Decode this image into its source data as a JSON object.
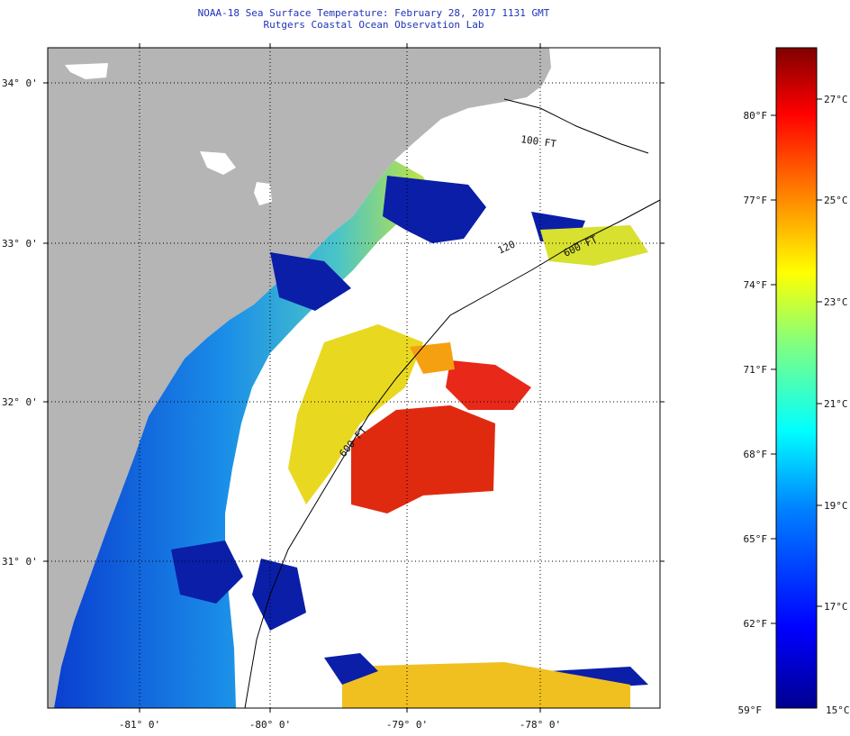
{
  "header": {
    "title": "NOAA-18 Sea Surface Temperature:  February 28, 2017 1131 GMT",
    "subtitle": "Rutgers Coastal Ocean Observation Lab"
  },
  "map": {
    "lat_labels": [
      "34° 0'",
      "33° 0'",
      "32° 0'",
      "31° 0'"
    ],
    "lon_labels": [
      "-81° 0'",
      "-80° 0'",
      "-79° 0'",
      "-78° 0'"
    ],
    "isobaths": [
      "100 FT",
      "600 FT",
      "120",
      "600 FT"
    ],
    "colors": {
      "land": "#b5b5b5",
      "cloud": "#ffffff",
      "coast_line": "#000000"
    }
  },
  "colorbar": {
    "fahrenheit_labels": [
      "80°F",
      "77°F",
      "74°F",
      "71°F",
      "68°F",
      "65°F",
      "62°F",
      "59°F"
    ],
    "celsius_labels": [
      "27°C",
      "25°C",
      "23°C",
      "21°C",
      "19°C",
      "17°C",
      "15°C"
    ],
    "range_f": [
      59,
      82
    ],
    "range_c": [
      15,
      28
    ],
    "stops": [
      "#00008f",
      "#0000ff",
      "#0080ff",
      "#00ffff",
      "#80ff80",
      "#ffff00",
      "#ff8000",
      "#ff0000",
      "#800000"
    ]
  }
}
